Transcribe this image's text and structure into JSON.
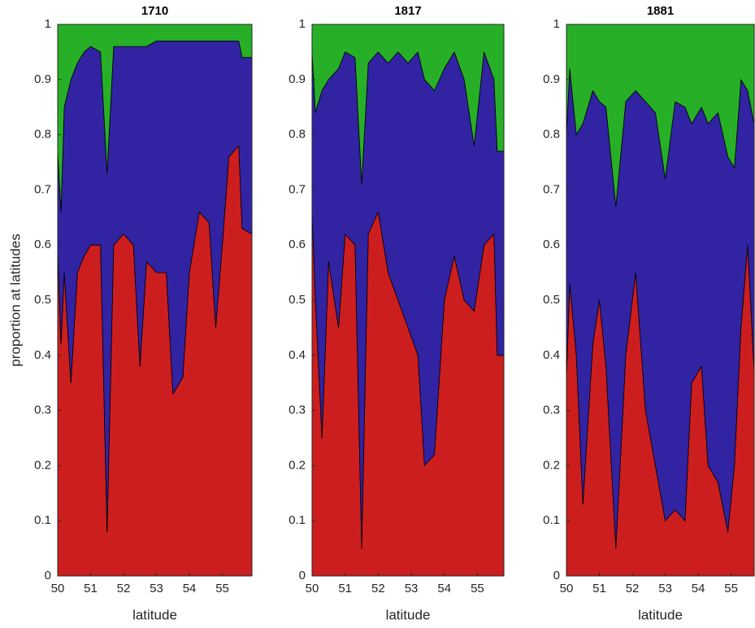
{
  "chart_data": [
    {
      "type": "stacked-area",
      "title": "1710",
      "x_label": "latitude",
      "y_label": "proportion at latitudes",
      "xlim": [
        50,
        55.9
      ],
      "xticks": [
        50,
        51,
        52,
        53,
        54,
        55
      ],
      "ylim": [
        0,
        1
      ],
      "yticks": [
        0,
        0.1,
        0.2,
        0.3,
        0.4,
        0.5,
        0.6,
        0.7,
        0.8,
        0.9,
        1
      ],
      "x": [
        50,
        50.1,
        50.2,
        50.4,
        50.6,
        50.8,
        51,
        51.3,
        51.5,
        51.7,
        52,
        52.3,
        52.5,
        52.7,
        53,
        53.3,
        53.5,
        53.8,
        54,
        54.3,
        54.6,
        54.8,
        55,
        55.2,
        55.5,
        55.6,
        55.9
      ],
      "series": [
        {
          "color": "#cc1e1e",
          "values": [
            0.59,
            0.42,
            0.55,
            0.35,
            0.55,
            0.58,
            0.6,
            0.6,
            0.08,
            0.6,
            0.62,
            0.6,
            0.38,
            0.57,
            0.55,
            0.55,
            0.33,
            0.36,
            0.55,
            0.66,
            0.64,
            0.45,
            0.6,
            0.76,
            0.78,
            0.63,
            0.62
          ]
        },
        {
          "color": "#3223a3",
          "values": [
            0.18,
            0.24,
            0.3,
            0.55,
            0.38,
            0.37,
            0.36,
            0.35,
            0.65,
            0.36,
            0.34,
            0.36,
            0.58,
            0.39,
            0.42,
            0.42,
            0.64,
            0.61,
            0.42,
            0.31,
            0.33,
            0.52,
            0.37,
            0.21,
            0.19,
            0.31,
            0.32
          ]
        },
        {
          "color": "#27b027",
          "values": [
            0.23,
            0.34,
            0.15,
            0.1,
            0.07,
            0.05,
            0.04,
            0.05,
            0.27,
            0.04,
            0.04,
            0.04,
            0.04,
            0.04,
            0.03,
            0.03,
            0.03,
            0.03,
            0.03,
            0.03,
            0.03,
            0.03,
            0.03,
            0.03,
            0.03,
            0.06,
            0.06
          ]
        }
      ]
    },
    {
      "type": "stacked-area",
      "title": "1817",
      "x_label": "latitude",
      "xlim": [
        50,
        55.8
      ],
      "xticks": [
        50,
        51,
        52,
        53,
        54,
        55
      ],
      "ylim": [
        0,
        1
      ],
      "yticks": [
        0,
        0.1,
        0.2,
        0.3,
        0.4,
        0.5,
        0.6,
        0.7,
        0.8,
        0.9,
        1
      ],
      "x": [
        50,
        50.1,
        50.3,
        50.5,
        50.8,
        51,
        51.3,
        51.5,
        51.7,
        52,
        52.3,
        52.6,
        52.9,
        53.2,
        53.4,
        53.7,
        54,
        54.3,
        54.6,
        54.9,
        55.2,
        55.5,
        55.6,
        55.8
      ],
      "series": [
        {
          "color": "#cc1e1e",
          "values": [
            0.66,
            0.5,
            0.25,
            0.57,
            0.45,
            0.62,
            0.6,
            0.05,
            0.62,
            0.66,
            0.55,
            0.5,
            0.45,
            0.4,
            0.2,
            0.22,
            0.5,
            0.58,
            0.5,
            0.48,
            0.6,
            0.62,
            0.4,
            0.4
          ]
        },
        {
          "color": "#3223a3",
          "values": [
            0.29,
            0.34,
            0.63,
            0.33,
            0.47,
            0.33,
            0.34,
            0.66,
            0.31,
            0.29,
            0.38,
            0.45,
            0.48,
            0.55,
            0.7,
            0.66,
            0.42,
            0.37,
            0.4,
            0.3,
            0.35,
            0.28,
            0.37,
            0.37
          ]
        },
        {
          "color": "#27b027",
          "values": [
            0.05,
            0.16,
            0.12,
            0.1,
            0.08,
            0.05,
            0.06,
            0.29,
            0.07,
            0.05,
            0.07,
            0.05,
            0.07,
            0.05,
            0.1,
            0.12,
            0.08,
            0.05,
            0.1,
            0.22,
            0.05,
            0.1,
            0.23,
            0.23
          ]
        }
      ]
    },
    {
      "type": "stacked-area",
      "title": "1881",
      "x_label": "latitude",
      "xlim": [
        50,
        55.7
      ],
      "xticks": [
        50,
        51,
        52,
        53,
        54,
        55
      ],
      "ylim": [
        0,
        1
      ],
      "yticks": [
        0,
        0.1,
        0.2,
        0.3,
        0.4,
        0.5,
        0.6,
        0.7,
        0.8,
        0.9,
        1
      ],
      "x": [
        50,
        50.1,
        50.3,
        50.5,
        50.8,
        51,
        51.2,
        51.5,
        51.8,
        52.1,
        52.4,
        52.7,
        53,
        53.3,
        53.6,
        53.8,
        54.1,
        54.3,
        54.6,
        54.9,
        55.1,
        55.3,
        55.5,
        55.7
      ],
      "series": [
        {
          "color": "#cc1e1e",
          "values": [
            0.36,
            0.53,
            0.4,
            0.13,
            0.42,
            0.5,
            0.38,
            0.05,
            0.4,
            0.55,
            0.3,
            0.2,
            0.1,
            0.12,
            0.1,
            0.35,
            0.38,
            0.2,
            0.17,
            0.08,
            0.2,
            0.45,
            0.6,
            0.37
          ]
        },
        {
          "color": "#3223a3",
          "values": [
            0.44,
            0.39,
            0.4,
            0.69,
            0.46,
            0.36,
            0.47,
            0.62,
            0.46,
            0.33,
            0.56,
            0.64,
            0.62,
            0.74,
            0.75,
            0.47,
            0.47,
            0.62,
            0.67,
            0.68,
            0.54,
            0.45,
            0.28,
            0.45
          ]
        },
        {
          "color": "#27b027",
          "values": [
            0.2,
            0.08,
            0.2,
            0.18,
            0.12,
            0.14,
            0.15,
            0.33,
            0.14,
            0.12,
            0.14,
            0.16,
            0.28,
            0.14,
            0.15,
            0.18,
            0.15,
            0.18,
            0.16,
            0.24,
            0.26,
            0.1,
            0.12,
            0.18
          ]
        }
      ]
    }
  ]
}
